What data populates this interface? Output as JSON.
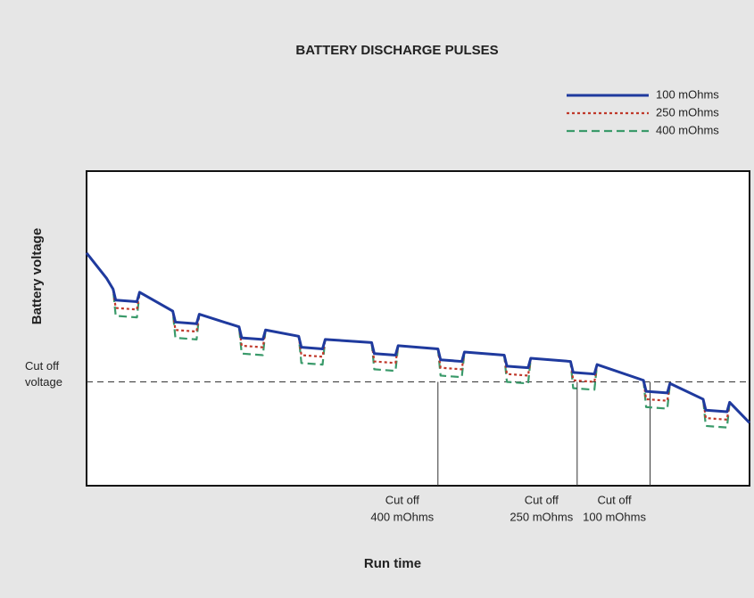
{
  "chart_data": {
    "type": "line",
    "title": "BATTERY DISCHARGE PULSES",
    "x_label": "Run time",
    "y_label": "Battery voltage",
    "xlim": [
      0,
      100
    ],
    "ylim": [
      0,
      100
    ],
    "x": [
      0,
      3,
      4,
      4.4,
      7.6,
      8,
      13,
      13.4,
      16.6,
      17,
      23,
      23.4,
      26.6,
      27,
      32,
      32.4,
      35.6,
      36,
      43,
      43.4,
      46.6,
      47,
      53,
      53.4,
      56.6,
      57,
      63,
      63.4,
      66.6,
      67,
      73,
      73.4,
      76.6,
      77,
      84,
      84.4,
      87.6,
      88,
      93,
      93.4,
      96.6,
      97,
      100
    ],
    "series": [
      {
        "name": "100 mOhms",
        "color": "#1f3a9e",
        "style": "solid",
        "values": [
          74,
          66,
          62.5,
          59,
          58.5,
          61.5,
          55.5,
          52,
          51.5,
          54.5,
          50.5,
          47,
          46.5,
          49.5,
          47.5,
          44,
          43.5,
          46.5,
          45.5,
          42,
          41.5,
          44.5,
          43.5,
          40,
          39.5,
          42.5,
          41.5,
          38,
          37.5,
          40.5,
          39.5,
          36,
          35.5,
          38.5,
          33.5,
          30,
          29.5,
          32.5,
          27.5,
          24,
          23.5,
          26.5,
          20
        ]
      },
      {
        "name": "250 mOhms",
        "color": "#c0392b",
        "style": "dotted",
        "values": [
          74,
          66,
          62.5,
          56.5,
          56,
          61.5,
          55.5,
          49.5,
          49,
          54.5,
          50.5,
          44.5,
          44,
          49.5,
          47.5,
          41.5,
          41,
          46.5,
          45.5,
          39.5,
          39,
          44.5,
          43.5,
          37.5,
          37,
          42.5,
          41.5,
          35.5,
          35,
          40.5,
          39.5,
          33.5,
          33,
          38.5,
          33.5,
          27.5,
          27,
          32.5,
          27.5,
          21.5,
          21,
          26.5,
          20
        ]
      },
      {
        "name": "400 mOhms",
        "color": "#3a9a6a",
        "style": "dashed",
        "values": [
          74,
          66,
          62.5,
          54,
          53.5,
          61.5,
          55.5,
          47,
          46.5,
          54.5,
          50.5,
          42,
          41.5,
          49.5,
          47.5,
          39,
          38.5,
          46.5,
          45.5,
          37,
          36.5,
          44.5,
          43.5,
          35,
          34.5,
          42.5,
          41.5,
          33,
          32.5,
          40.5,
          39.5,
          31,
          30.5,
          38.5,
          33.5,
          25,
          24.5,
          32.5,
          27.5,
          19,
          18.5,
          26.5,
          20
        ]
      }
    ],
    "cutoff_voltage": {
      "label": [
        "Cut off",
        "voltage"
      ],
      "value": 33
    },
    "cutoffs": [
      {
        "x": 53,
        "label": [
          "Cut off",
          "400 mOhms"
        ]
      },
      {
        "x": 74,
        "label": [
          "Cut off",
          "250 mOhms"
        ]
      },
      {
        "x": 85,
        "label": [
          "Cut off",
          "100 mOhms"
        ]
      }
    ]
  }
}
